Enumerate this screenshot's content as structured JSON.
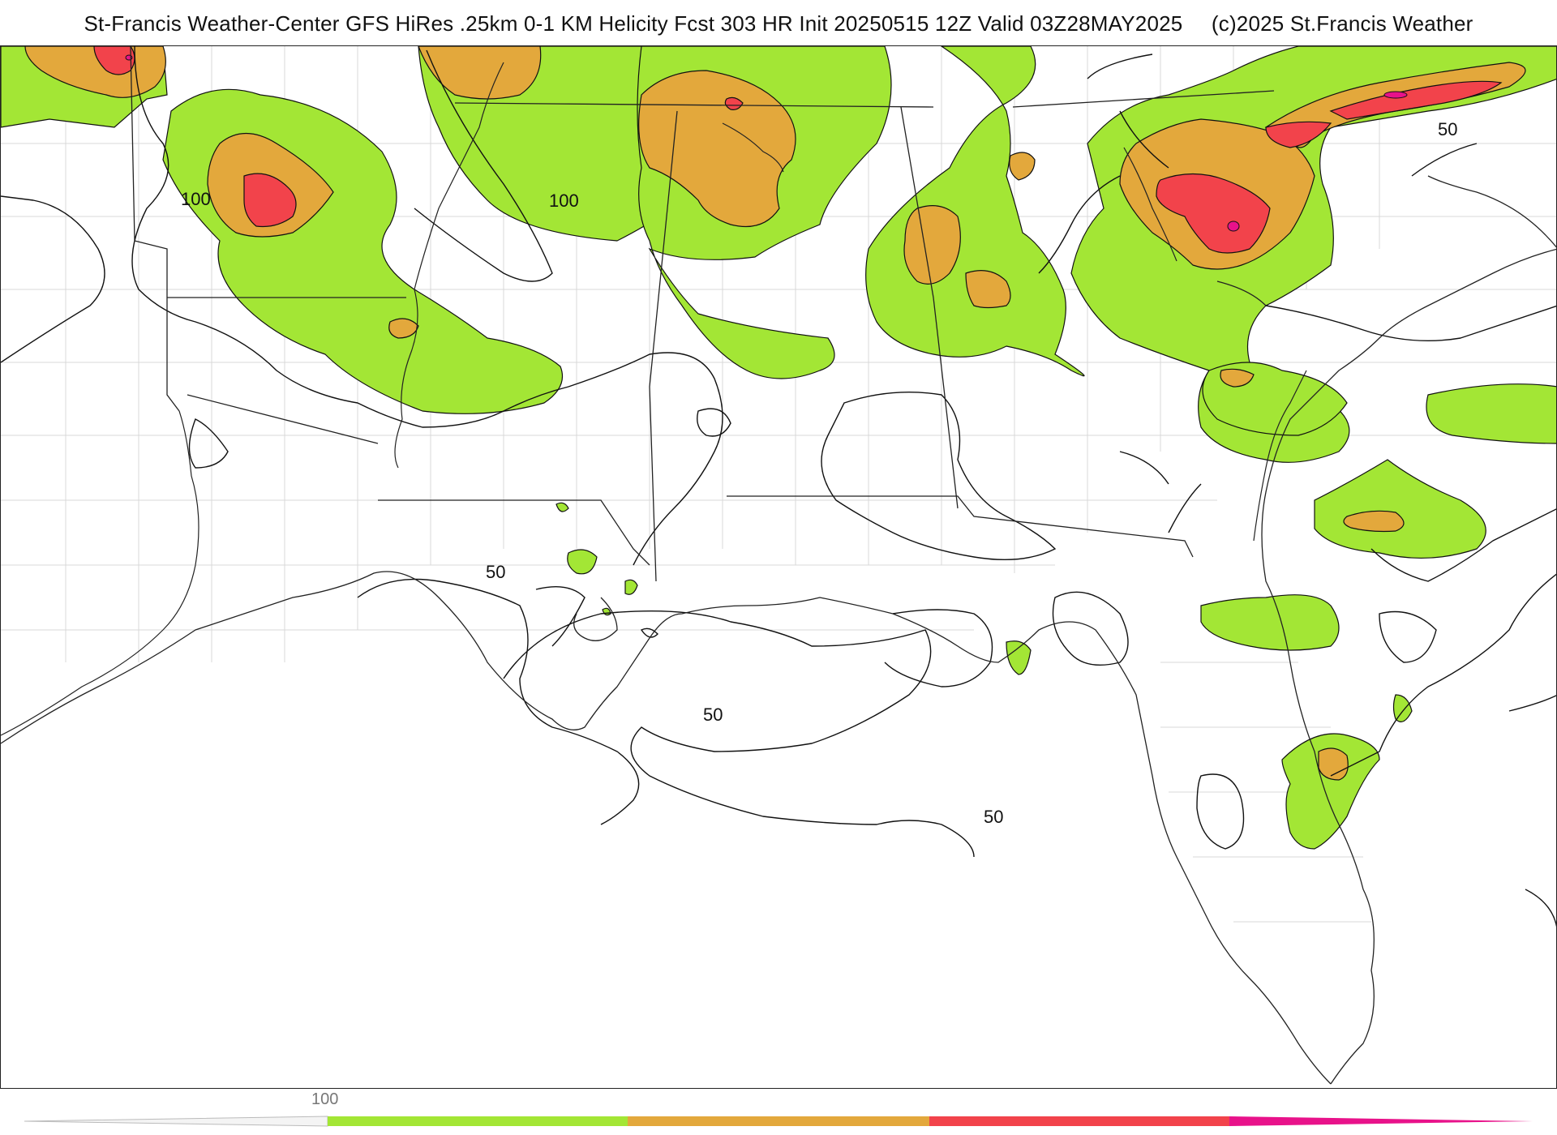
{
  "header": {
    "title": "St-Francis Weather-Center GFS HiRes .25km 0-1 KM Helicity Fcst 303 HR Init 20250515 12Z  Valid 03Z28MAY2025",
    "credit": "(c)2025 St.Francis Weather"
  },
  "map": {
    "field": "0-1 KM Helicity",
    "contour_labels": [
      "100",
      "100",
      "50",
      "50",
      "50",
      "50"
    ]
  },
  "colorbar": {
    "tick_label": "100",
    "colors": {
      "band1": "#a3e635",
      "band2": "#e3a83c",
      "band3": "#f2434b",
      "band4": "#e8128a"
    }
  }
}
